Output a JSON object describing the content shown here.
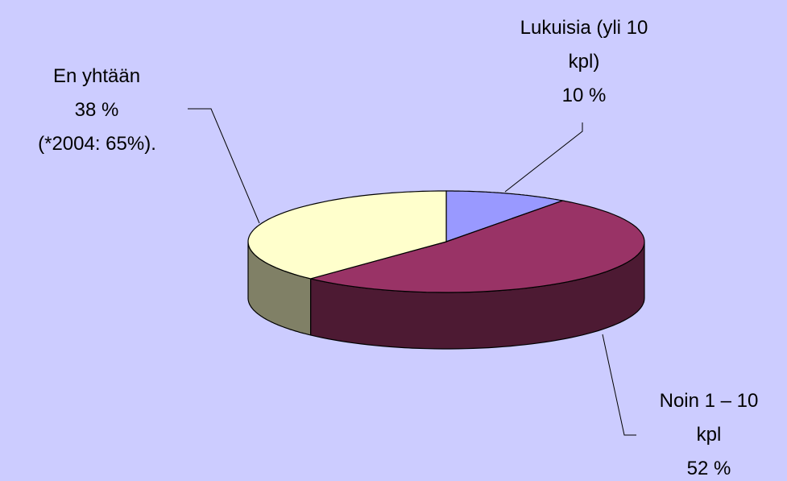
{
  "chart_data": {
    "type": "pie",
    "categories": [
      "Lukuisia (yli 10 kpl)",
      "Noin 1 – 10 kpl",
      "En yhtään"
    ],
    "values": [
      10,
      52,
      38
    ],
    "value_labels": [
      "10 %",
      "52 %",
      "38 %"
    ],
    "colors": [
      "#9999ff",
      "#993366",
      "#ffffcc"
    ],
    "annotation": "(*2004: 65%)."
  }
}
